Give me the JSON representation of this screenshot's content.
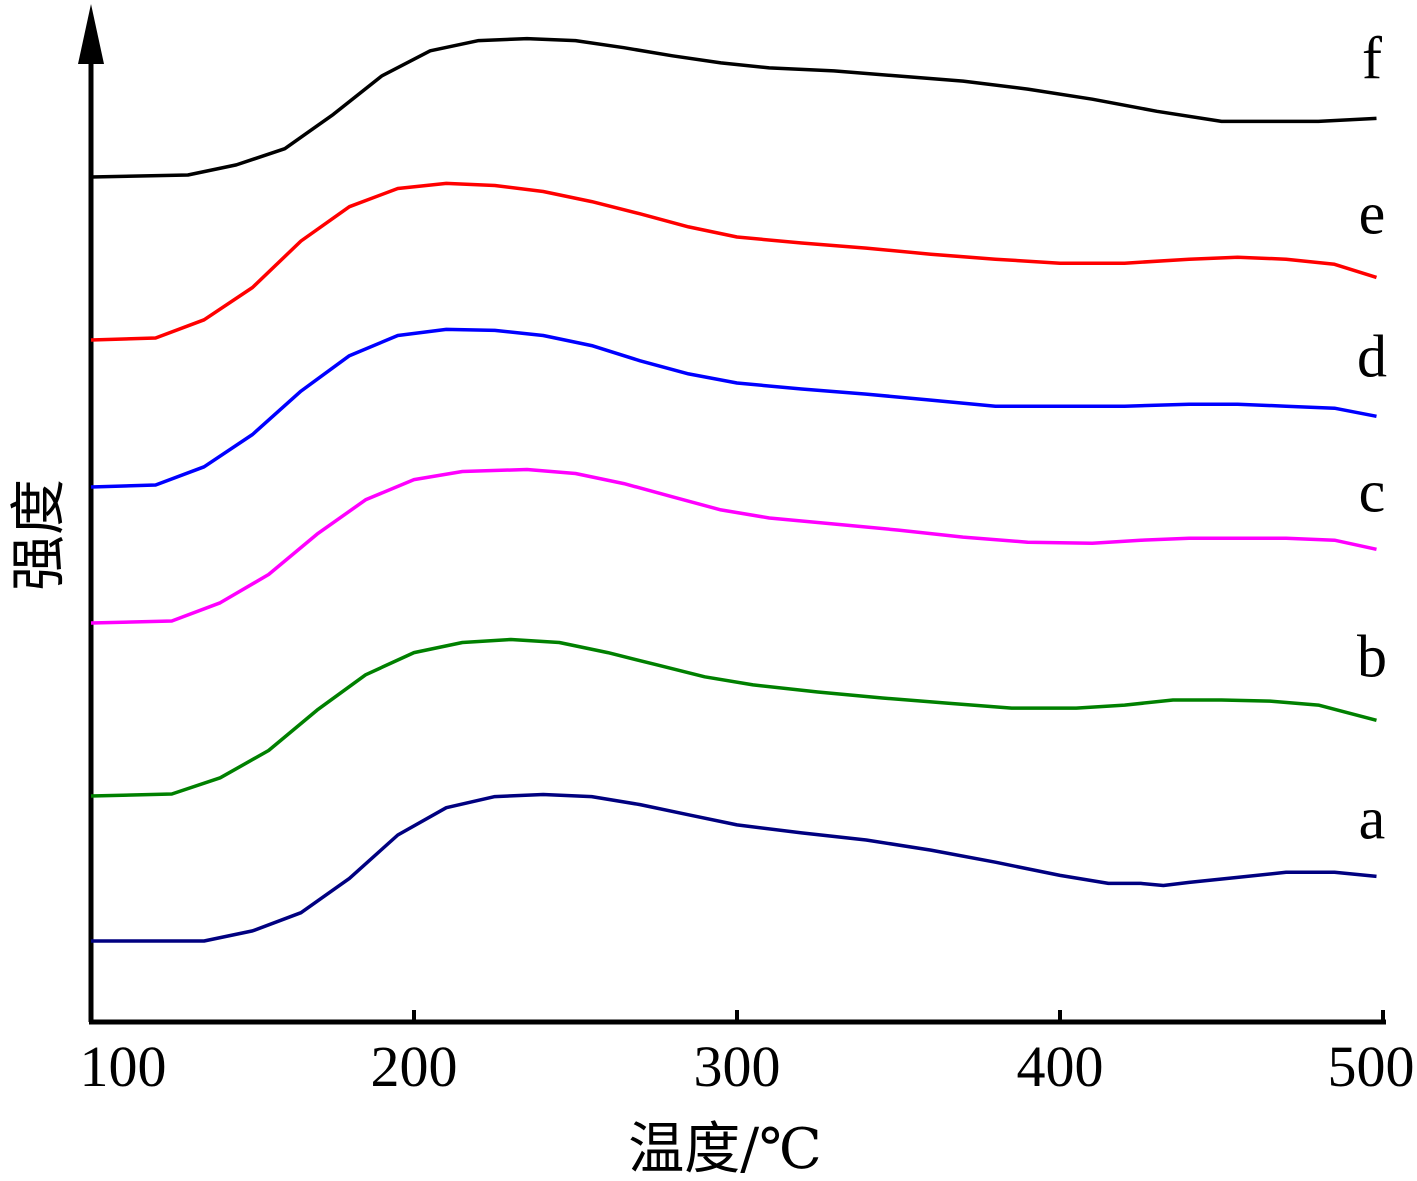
{
  "chart_data": {
    "type": "line",
    "title": "",
    "xlabel": "温度/℃",
    "ylabel": "强度",
    "xlim": [
      100,
      500
    ],
    "x_ticks": [
      "100",
      "200",
      "300",
      "400",
      "500"
    ],
    "y_ticks_shown": false,
    "legend": "inline labels at right end of each curve",
    "series": [
      {
        "name": "a",
        "color": "#000080",
        "x": [
          100,
          135,
          150,
          165,
          180,
          195,
          210,
          225,
          240,
          255,
          270,
          285,
          300,
          320,
          340,
          360,
          380,
          400,
          415,
          425,
          432,
          440,
          455,
          470,
          485,
          498
        ],
        "y": [
          0.0,
          0.0,
          0.1,
          0.28,
          0.62,
          1.05,
          1.32,
          1.43,
          1.45,
          1.43,
          1.35,
          1.25,
          1.15,
          1.07,
          1.0,
          0.9,
          0.78,
          0.65,
          0.57,
          0.57,
          0.55,
          0.58,
          0.63,
          0.68,
          0.68,
          0.64
        ]
      },
      {
        "name": "b",
        "color": "#008000",
        "x": [
          100,
          125,
          140,
          155,
          170,
          185,
          200,
          215,
          230,
          245,
          260,
          275,
          290,
          305,
          325,
          345,
          365,
          385,
          405,
          420,
          435,
          450,
          465,
          480,
          498
        ],
        "y": [
          0.0,
          0.02,
          0.18,
          0.45,
          0.85,
          1.2,
          1.42,
          1.52,
          1.55,
          1.52,
          1.42,
          1.3,
          1.18,
          1.1,
          1.03,
          0.97,
          0.92,
          0.87,
          0.87,
          0.9,
          0.95,
          0.95,
          0.94,
          0.9,
          0.75
        ]
      },
      {
        "name": "c",
        "color": "#ff00ff",
        "x": [
          100,
          125,
          140,
          155,
          170,
          185,
          200,
          215,
          235,
          250,
          265,
          280,
          295,
          310,
          330,
          350,
          370,
          390,
          410,
          425,
          440,
          455,
          470,
          485,
          498
        ],
        "y": [
          0.0,
          0.02,
          0.2,
          0.48,
          0.88,
          1.22,
          1.42,
          1.5,
          1.52,
          1.48,
          1.38,
          1.25,
          1.12,
          1.04,
          0.98,
          0.92,
          0.85,
          0.8,
          0.79,
          0.82,
          0.84,
          0.84,
          0.84,
          0.82,
          0.73
        ]
      },
      {
        "name": "d",
        "color": "#0000ff",
        "x": [
          100,
          120,
          135,
          150,
          165,
          180,
          195,
          210,
          225,
          240,
          255,
          270,
          285,
          300,
          320,
          340,
          360,
          380,
          400,
          420,
          440,
          455,
          470,
          485,
          498
        ],
        "y": [
          0.0,
          0.02,
          0.2,
          0.52,
          0.95,
          1.3,
          1.5,
          1.56,
          1.55,
          1.5,
          1.4,
          1.25,
          1.12,
          1.03,
          0.97,
          0.92,
          0.86,
          0.8,
          0.8,
          0.8,
          0.82,
          0.82,
          0.8,
          0.78,
          0.7
        ]
      },
      {
        "name": "e",
        "color": "#ff0000",
        "x": [
          100,
          120,
          135,
          150,
          165,
          180,
          195,
          210,
          225,
          240,
          255,
          270,
          285,
          300,
          320,
          340,
          360,
          380,
          400,
          420,
          440,
          455,
          470,
          485,
          498
        ],
        "y": [
          0.0,
          0.02,
          0.2,
          0.52,
          0.98,
          1.32,
          1.5,
          1.55,
          1.53,
          1.47,
          1.37,
          1.25,
          1.12,
          1.02,
          0.96,
          0.91,
          0.85,
          0.8,
          0.76,
          0.76,
          0.8,
          0.82,
          0.8,
          0.75,
          0.62
        ]
      },
      {
        "name": "f",
        "color": "#000000",
        "x": [
          100,
          130,
          145,
          160,
          175,
          190,
          205,
          220,
          235,
          250,
          265,
          280,
          295,
          310,
          330,
          350,
          370,
          390,
          410,
          430,
          450,
          465,
          480,
          498
        ],
        "y": [
          0.0,
          0.02,
          0.12,
          0.28,
          0.62,
          1.0,
          1.25,
          1.35,
          1.37,
          1.35,
          1.28,
          1.2,
          1.13,
          1.08,
          1.05,
          1.0,
          0.95,
          0.87,
          0.77,
          0.65,
          0.55,
          0.55,
          0.55,
          0.58
        ]
      }
    ]
  }
}
